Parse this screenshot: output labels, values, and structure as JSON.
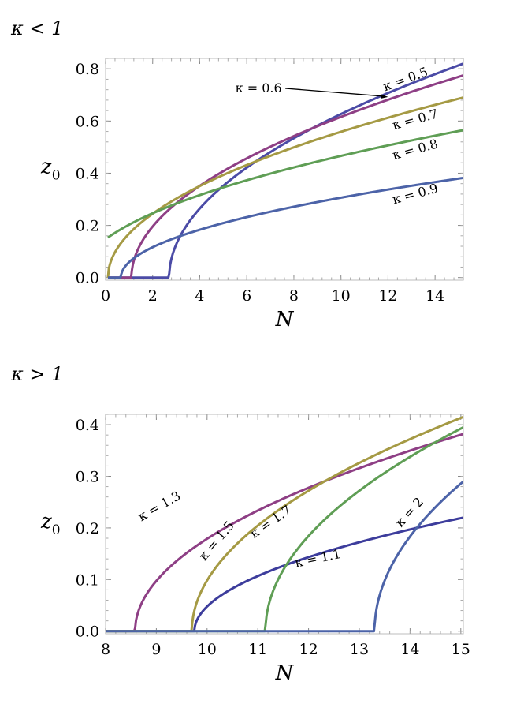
{
  "chart_data": [
    {
      "type": "line",
      "section_label": "κ < 1",
      "xlabel": "N",
      "ylabel": "z",
      "ylabel_sub": "0",
      "xlim": [
        0,
        15.2
      ],
      "ylim": [
        -0.01,
        0.84
      ],
      "xticks": [
        0,
        2,
        4,
        6,
        8,
        10,
        12,
        14
      ],
      "yticks": [
        0.0,
        0.2,
        0.4,
        0.6,
        0.8
      ],
      "xtick_labels": [
        "0",
        "2",
        "4",
        "6",
        "8",
        "10",
        "12",
        "14"
      ],
      "ytick_labels": [
        "0.0",
        "0.2",
        "0.4",
        "0.6",
        "0.8"
      ],
      "series": [
        {
          "name": "κ = 0.5",
          "color": "#4b4ba6",
          "Nc": 2.7,
          "x_end": 15.2,
          "y_end": 0.82
        },
        {
          "name": "κ = 0.6",
          "color": "#8e3f85",
          "Nc": 1.1,
          "x_end": 15.2,
          "y_end": 0.775
        },
        {
          "name": "κ = 0.7",
          "color": "#a59a44",
          "Nc": 0.1,
          "x_end": 15.2,
          "y_end": 0.69
        },
        {
          "name": "κ = 0.8",
          "color": "#5f9e55",
          "Nc": -1.1,
          "x_end": 15.2,
          "y_end": 0.565
        },
        {
          "name": "κ = 0.9",
          "color": "#4c63a8",
          "Nc": 0.65,
          "x_end": 15.2,
          "y_end": 0.382
        }
      ],
      "labels": [
        {
          "text": "κ = 0.5",
          "x": 12.8,
          "y": 0.745,
          "angle": -20
        },
        {
          "text": "κ = 0.6",
          "x": 6.5,
          "y": 0.71,
          "angle": 0,
          "arrow_to": [
            12.0,
            0.692
          ]
        },
        {
          "text": "κ = 0.7",
          "x": 13.2,
          "y": 0.59,
          "angle": -15
        },
        {
          "text": "κ = 0.8",
          "x": 13.2,
          "y": 0.475,
          "angle": -15
        },
        {
          "text": "κ = 0.9",
          "x": 13.2,
          "y": 0.305,
          "angle": -15
        }
      ]
    },
    {
      "type": "line",
      "section_label": "κ > 1",
      "xlabel": "N",
      "ylabel": "z",
      "ylabel_sub": "0",
      "xlim": [
        8,
        15.05
      ],
      "ylim": [
        -0.005,
        0.42
      ],
      "xticks": [
        8,
        9,
        10,
        11,
        12,
        13,
        14,
        15
      ],
      "yticks": [
        0.0,
        0.1,
        0.2,
        0.3,
        0.4
      ],
      "xtick_labels": [
        "8",
        "9",
        "10",
        "11",
        "12",
        "13",
        "14",
        "15"
      ],
      "ytick_labels": [
        "0.0",
        "0.1",
        "0.2",
        "0.3",
        "0.4"
      ],
      "series": [
        {
          "name": "κ = 1.1",
          "color": "#3d3d9c",
          "Nc": 9.75,
          "x_end": 15.05,
          "y_end": 0.22
        },
        {
          "name": "κ = 1.3",
          "color": "#8e3f85",
          "Nc": 8.58,
          "x_end": 15.05,
          "y_end": 0.382
        },
        {
          "name": "κ = 1.5",
          "color": "#a59a44",
          "Nc": 9.7,
          "x_end": 15.05,
          "y_end": 0.415
        },
        {
          "name": "κ = 1.7",
          "color": "#5f9e55",
          "Nc": 11.15,
          "x_end": 15.05,
          "y_end": 0.395
        },
        {
          "name": "κ = 2",
          "color": "#4c63a8",
          "Nc": 13.3,
          "x_end": 15.05,
          "y_end": 0.29
        }
      ],
      "labels": [
        {
          "text": "κ = 1.3",
          "x": 9.1,
          "y": 0.235,
          "angle": -30
        },
        {
          "text": "κ = 1.5",
          "x": 10.25,
          "y": 0.17,
          "angle": -50
        },
        {
          "text": "κ = 1.7",
          "x": 11.3,
          "y": 0.205,
          "angle": -35
        },
        {
          "text": "κ = 1.1",
          "x": 12.2,
          "y": 0.133,
          "angle": -12
        },
        {
          "text": "κ = 2",
          "x": 14.05,
          "y": 0.225,
          "angle": -48
        }
      ]
    }
  ]
}
